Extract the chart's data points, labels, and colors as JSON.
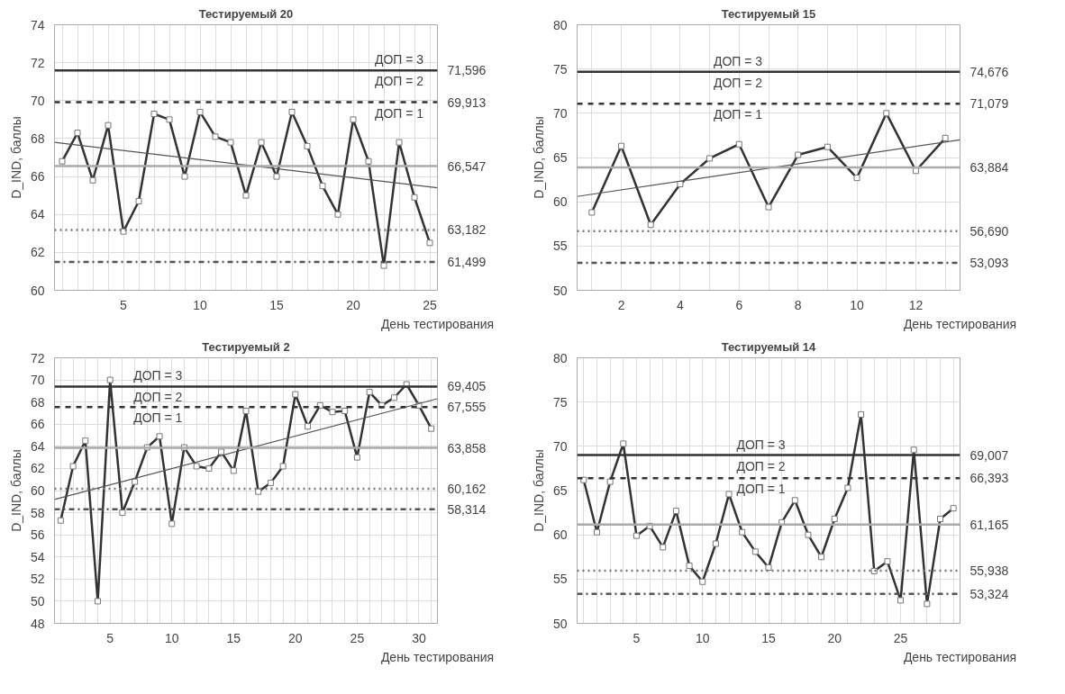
{
  "chart_data": [
    {
      "type": "line",
      "title": "Тестируемый 20",
      "xlabel": "День тестирования",
      "ylabel": "D_IND, баллы",
      "xlim": [
        0.5,
        25.5
      ],
      "ylim": [
        60,
        74
      ],
      "xticks": [
        {
          "value": 1,
          "label": null
        },
        {
          "value": 2,
          "label": null
        },
        {
          "value": 3,
          "label": null
        },
        {
          "value": 4,
          "label": null
        },
        5,
        {
          "value": 6,
          "label": null
        },
        {
          "value": 7,
          "label": null
        },
        {
          "value": 8,
          "label": null
        },
        {
          "value": 9,
          "label": null
        },
        10,
        {
          "value": 11,
          "label": null
        },
        {
          "value": 12,
          "label": null
        },
        {
          "value": 13,
          "label": null
        },
        {
          "value": 14,
          "label": null
        },
        15,
        {
          "value": 16,
          "label": null
        },
        {
          "value": 17,
          "label": null
        },
        {
          "value": 18,
          "label": null
        },
        {
          "value": 19,
          "label": null
        },
        20,
        {
          "value": 21,
          "label": null
        },
        {
          "value": 22,
          "label": null
        },
        {
          "value": 23,
          "label": null
        },
        {
          "value": 24,
          "label": null
        },
        25
      ],
      "yticks": [
        60,
        62,
        64,
        66,
        68,
        70,
        72,
        74
      ],
      "grid": true,
      "marker": "square",
      "line_style": "solid",
      "x": [
        1,
        2,
        3,
        4,
        5,
        6,
        7,
        8,
        9,
        10,
        11,
        12,
        13,
        14,
        15,
        16,
        17,
        18,
        19,
        20,
        21,
        22,
        23,
        24,
        25
      ],
      "series": [
        {
          "color": "#333333",
          "values": [
            66.8,
            68.3,
            65.8,
            68.7,
            63.1,
            64.7,
            69.3,
            69.0,
            66.0,
            69.4,
            68.1,
            67.8,
            65.0,
            67.8,
            66.0,
            69.4,
            67.6,
            65.5,
            64.0,
            69.0,
            66.8,
            61.3,
            67.8,
            64.9,
            62.5
          ]
        },
        {
          "type": "line",
          "color": "#555555",
          "marker": "none",
          "x": [
            0.5,
            25.5
          ],
          "values": [
            67.8,
            65.4
          ]
        }
      ],
      "ref_lines": [
        {
          "axis": "y",
          "value": 71.596,
          "label": "71,596",
          "color": "#333333",
          "line_style": "solid"
        },
        {
          "axis": "y",
          "value": 69.913,
          "label": "69,913",
          "color": "#333333",
          "line_style": "dashed"
        },
        {
          "axis": "y",
          "value": 66.547,
          "label": "66,547",
          "color": "#aaaaaa",
          "line_style": "solid"
        },
        {
          "axis": "y",
          "value": 63.182,
          "label": "63,182",
          "color": "#777777",
          "line_style": "dotted"
        },
        {
          "axis": "y",
          "value": 61.499,
          "label": "61,499",
          "color": "#555555",
          "line_style": "dashdot"
        }
      ],
      "annotations": [
        "ДОП = 3",
        "ДОП = 2",
        "ДОП = 1"
      ]
    },
    {
      "type": "line",
      "title": "Тестируемый 15",
      "xlabel": "День тестирования",
      "ylabel": "D_IND, баллы",
      "xlim": [
        0.5,
        13.5
      ],
      "ylim": [
        50,
        80
      ],
      "xticks": [
        {
          "value": 1,
          "label": null
        },
        2,
        {
          "value": 3,
          "label": null
        },
        4,
        {
          "value": 5,
          "label": null
        },
        6,
        {
          "value": 7,
          "label": null
        },
        8,
        {
          "value": 9,
          "label": null
        },
        10,
        {
          "value": 11,
          "label": null
        },
        12,
        {
          "value": 13,
          "label": null
        }
      ],
      "yticks": [
        50,
        55,
        60,
        65,
        70,
        75,
        80
      ],
      "grid": true,
      "marker": "square",
      "line_style": "solid",
      "x": [
        1,
        2,
        3,
        4,
        5,
        6,
        7,
        8,
        9,
        10,
        11,
        12,
        13
      ],
      "series": [
        {
          "color": "#333333",
          "values": [
            58.8,
            66.3,
            57.4,
            62.0,
            64.9,
            66.5,
            59.4,
            65.3,
            66.2,
            62.7,
            70.0,
            63.5,
            67.2
          ]
        },
        {
          "type": "line",
          "color": "#555555",
          "marker": "none",
          "x": [
            0.5,
            13.5
          ],
          "values": [
            60.6,
            67.0
          ]
        }
      ],
      "ref_lines": [
        {
          "axis": "y",
          "value": 74.676,
          "label": "74,676",
          "color": "#333333",
          "line_style": "solid"
        },
        {
          "axis": "y",
          "value": 71.079,
          "label": "71,079",
          "color": "#333333",
          "line_style": "dashed"
        },
        {
          "axis": "y",
          "value": 63.884,
          "label": "63,884",
          "color": "#aaaaaa",
          "line_style": "solid"
        },
        {
          "axis": "y",
          "value": 56.69,
          "label": "56,690",
          "color": "#777777",
          "line_style": "dotted"
        },
        {
          "axis": "y",
          "value": 53.093,
          "label": "53,093",
          "color": "#555555",
          "line_style": "dashdot"
        }
      ],
      "annotations": [
        "ДОП = 3",
        "ДОП = 2",
        "ДОП = 1"
      ]
    },
    {
      "type": "line",
      "title": "Тестируемый 2",
      "xlabel": "День тестирования",
      "ylabel": "D_IND, баллы",
      "xlim": [
        0.5,
        31.5
      ],
      "ylim": [
        48,
        72
      ],
      "xticks": [
        {
          "value": 1,
          "label": null
        },
        {
          "value": 2,
          "label": null
        },
        {
          "value": 3,
          "label": null
        },
        {
          "value": 4,
          "label": null
        },
        5,
        {
          "value": 6,
          "label": null
        },
        {
          "value": 7,
          "label": null
        },
        {
          "value": 8,
          "label": null
        },
        {
          "value": 9,
          "label": null
        },
        10,
        {
          "value": 11,
          "label": null
        },
        {
          "value": 12,
          "label": null
        },
        {
          "value": 13,
          "label": null
        },
        {
          "value": 14,
          "label": null
        },
        15,
        {
          "value": 16,
          "label": null
        },
        {
          "value": 17,
          "label": null
        },
        {
          "value": 18,
          "label": null
        },
        {
          "value": 19,
          "label": null
        },
        20,
        {
          "value": 21,
          "label": null
        },
        {
          "value": 22,
          "label": null
        },
        {
          "value": 23,
          "label": null
        },
        {
          "value": 24,
          "label": null
        },
        25,
        {
          "value": 26,
          "label": null
        },
        {
          "value": 27,
          "label": null
        },
        {
          "value": 28,
          "label": null
        },
        {
          "value": 29,
          "label": null
        },
        30,
        {
          "value": 31,
          "label": null
        }
      ],
      "yticks": [
        48,
        50,
        52,
        54,
        56,
        58,
        60,
        62,
        64,
        66,
        68,
        70,
        72
      ],
      "grid": true,
      "marker": "square",
      "line_style": "solid",
      "x": [
        1,
        2,
        3,
        4,
        5,
        6,
        7,
        8,
        9,
        10,
        11,
        12,
        13,
        14,
        15,
        16,
        17,
        18,
        19,
        20,
        21,
        22,
        23,
        24,
        25,
        26,
        27,
        28,
        29,
        30,
        31
      ],
      "series": [
        {
          "color": "#333333",
          "values": [
            57.3,
            62.2,
            64.5,
            50.0,
            70.0,
            58.0,
            60.8,
            63.9,
            64.9,
            57.0,
            63.9,
            62.2,
            62.0,
            63.5,
            61.8,
            67.2,
            59.9,
            60.7,
            62.2,
            68.7,
            65.8,
            67.7,
            67.1,
            67.2,
            63.0,
            68.9,
            67.7,
            68.4,
            69.6,
            67.7,
            65.6
          ]
        },
        {
          "type": "line",
          "color": "#555555",
          "marker": "none",
          "x": [
            0.5,
            31.5
          ],
          "values": [
            59.2,
            68.3
          ]
        }
      ],
      "ref_lines": [
        {
          "axis": "y",
          "value": 69.405,
          "label": "69,405",
          "color": "#333333",
          "line_style": "solid"
        },
        {
          "axis": "y",
          "value": 67.555,
          "label": "67,555",
          "color": "#333333",
          "line_style": "dashed"
        },
        {
          "axis": "y",
          "value": 63.858,
          "label": "63,858",
          "color": "#aaaaaa",
          "line_style": "solid"
        },
        {
          "axis": "y",
          "value": 60.162,
          "label": "60,162",
          "color": "#777777",
          "line_style": "dotted"
        },
        {
          "axis": "y",
          "value": 58.314,
          "label": "58,314",
          "color": "#555555",
          "line_style": "dashdot"
        }
      ],
      "annotations": [
        "ДОП = 3",
        "ДОП = 2",
        "ДОП = 1"
      ]
    },
    {
      "type": "line",
      "title": "Тестируемый 14",
      "xlabel": "День тестирования",
      "ylabel": "D_IND, баллы",
      "xlim": [
        0.5,
        29.5
      ],
      "ylim": [
        50,
        80
      ],
      "xticks": [
        {
          "value": 1,
          "label": null
        },
        {
          "value": 2,
          "label": null
        },
        {
          "value": 3,
          "label": null
        },
        {
          "value": 4,
          "label": null
        },
        5,
        {
          "value": 6,
          "label": null
        },
        {
          "value": 7,
          "label": null
        },
        {
          "value": 8,
          "label": null
        },
        {
          "value": 9,
          "label": null
        },
        10,
        {
          "value": 11,
          "label": null
        },
        {
          "value": 12,
          "label": null
        },
        {
          "value": 13,
          "label": null
        },
        {
          "value": 14,
          "label": null
        },
        15,
        {
          "value": 16,
          "label": null
        },
        {
          "value": 17,
          "label": null
        },
        {
          "value": 18,
          "label": null
        },
        {
          "value": 19,
          "label": null
        },
        20,
        {
          "value": 21,
          "label": null
        },
        {
          "value": 22,
          "label": null
        },
        {
          "value": 23,
          "label": null
        },
        {
          "value": 24,
          "label": null
        },
        25,
        {
          "value": 26,
          "label": null
        },
        {
          "value": 27,
          "label": null
        },
        {
          "value": 28,
          "label": null
        },
        {
          "value": 29,
          "label": null
        }
      ],
      "yticks": [
        50,
        55,
        60,
        65,
        70,
        75,
        80
      ],
      "grid": true,
      "marker": "square",
      "line_style": "solid",
      "x": [
        1,
        2,
        3,
        4,
        5,
        6,
        7,
        8,
        9,
        10,
        11,
        12,
        13,
        14,
        15,
        16,
        17,
        18,
        19,
        20,
        21,
        22,
        23,
        24,
        25,
        26,
        27,
        28,
        29
      ],
      "series": [
        {
          "color": "#333333",
          "values": [
            66.2,
            60.3,
            66.0,
            70.3,
            59.9,
            61.0,
            58.6,
            62.7,
            56.5,
            54.7,
            59.0,
            64.6,
            60.3,
            58.1,
            56.3,
            61.4,
            63.9,
            60.0,
            57.5,
            61.8,
            65.3,
            73.6,
            55.9,
            57.0,
            52.6,
            69.6,
            52.2,
            61.8,
            63.0
          ]
        }
      ],
      "ref_lines": [
        {
          "axis": "y",
          "value": 69.007,
          "label": "69,007",
          "color": "#333333",
          "line_style": "solid"
        },
        {
          "axis": "y",
          "value": 66.393,
          "label": "66,393",
          "color": "#333333",
          "line_style": "dashed"
        },
        {
          "axis": "y",
          "value": 61.165,
          "label": "61,165",
          "color": "#aaaaaa",
          "line_style": "solid"
        },
        {
          "axis": "y",
          "value": 55.938,
          "label": "55,938",
          "color": "#777777",
          "line_style": "dotted"
        },
        {
          "axis": "y",
          "value": 53.324,
          "label": "53,324",
          "color": "#555555",
          "line_style": "dashdot"
        }
      ],
      "annotations": [
        "ДОП = 3",
        "ДОП = 2",
        "ДОП = 1"
      ]
    }
  ]
}
